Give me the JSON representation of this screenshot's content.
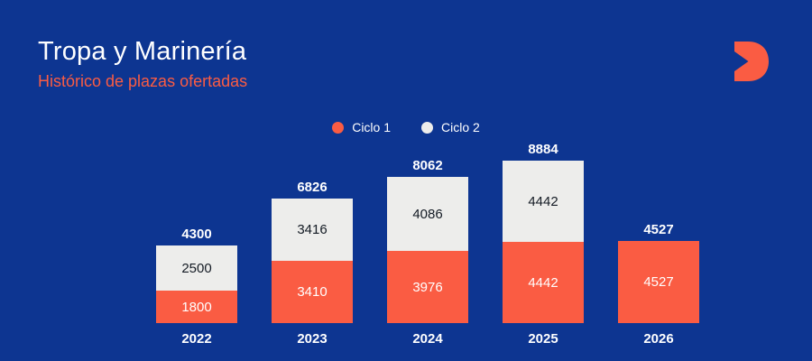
{
  "page": {
    "title": "Tropa y Marinería",
    "subtitle": "Histórico de plazas ofertadas"
  },
  "colors": {
    "background": "#0d3591",
    "ciclo1": "#fa5c43",
    "ciclo2": "#ededeb",
    "text_light": "#ffffff",
    "text_dark": "#141b24"
  },
  "legend": {
    "items": [
      {
        "label": "Ciclo 1",
        "color": "#fa5c43"
      },
      {
        "label": "Ciclo 2",
        "color": "#ededeb"
      }
    ]
  },
  "chart_data": {
    "type": "bar",
    "subtype": "stacked",
    "title": "Histórico de plazas ofertadas",
    "categories": [
      "2022",
      "2023",
      "2024",
      "2025",
      "2026"
    ],
    "series": [
      {
        "name": "Ciclo 1",
        "color": "#fa5c43",
        "values": [
          1800,
          3410,
          3976,
          4442,
          4527
        ]
      },
      {
        "name": "Ciclo 2",
        "color": "#ededeb",
        "values": [
          2500,
          3416,
          4086,
          4442,
          null
        ]
      }
    ],
    "totals": [
      4300,
      6826,
      8062,
      8884,
      4527
    ],
    "ylim": [
      0,
      8884
    ],
    "grid": false,
    "axes_visible": false,
    "legend_position": "top-center",
    "value_labels": "inside-segments",
    "total_labels": "above-bars"
  }
}
